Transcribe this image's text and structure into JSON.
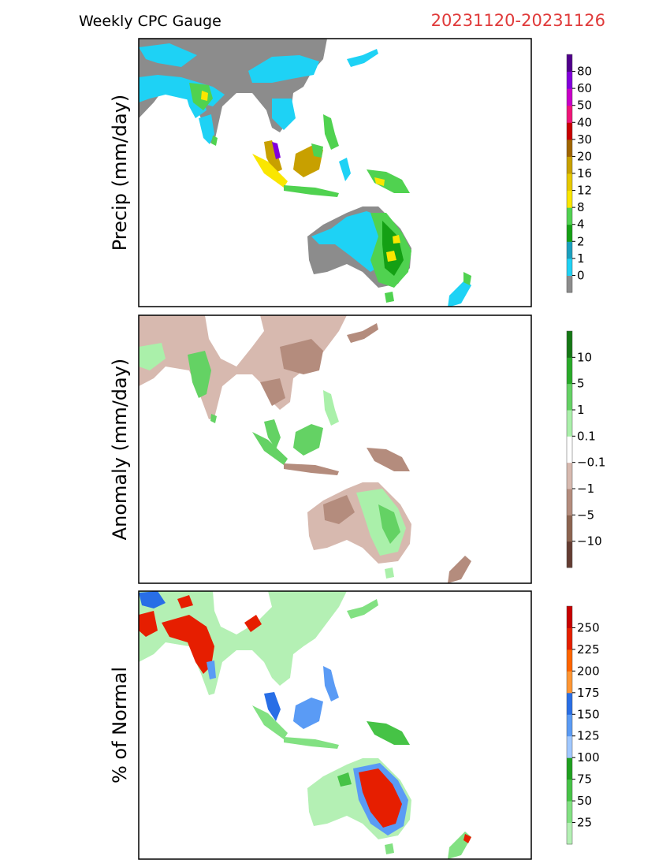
{
  "header": {
    "title": "Weekly CPC Gauge",
    "date_range": "20231120-20231126",
    "date_color": "#e03a3a"
  },
  "panels": [
    {
      "id": "precip",
      "ylabel": "Precip (mm/day)",
      "legend": {
        "labels": [
          "0",
          "1",
          "2",
          "4",
          "8",
          "12",
          "16",
          "20",
          "30",
          "40",
          "50",
          "60",
          "80"
        ],
        "colors": [
          "#8c8c8c",
          "#1ed2f5",
          "#19a0be",
          "#14a014",
          "#50d250",
          "#fae600",
          "#e6c800",
          "#c8a000",
          "#a06400",
          "#c80000",
          "#f01478",
          "#c800c8",
          "#8200dc",
          "#50008c"
        ]
      }
    },
    {
      "id": "anomaly",
      "ylabel": "Anomaly (mm/day)",
      "legend": {
        "labels": [
          "−10",
          "−5",
          "−1",
          "−0.1",
          "0.1",
          "1",
          "5",
          "10"
        ],
        "colors": [
          "#643c32",
          "#8c6450",
          "#b48c7d",
          "#d7b9af",
          "#ffffff",
          "#aaf0aa",
          "#64d264",
          "#28aa28",
          "#147814"
        ]
      }
    },
    {
      "id": "percent",
      "ylabel": "% of Normal",
      "legend": {
        "labels": [
          "25",
          "50",
          "75",
          "100",
          "125",
          "150",
          "175",
          "200",
          "225",
          "250"
        ],
        "colors": [
          "#b4f0b4",
          "#82e182",
          "#46c346",
          "#1ea01e",
          "#a0c8ff",
          "#5a9bf5",
          "#286ee6",
          "#ff9632",
          "#ff6400",
          "#e61e00",
          "#c80000"
        ]
      }
    }
  ]
}
